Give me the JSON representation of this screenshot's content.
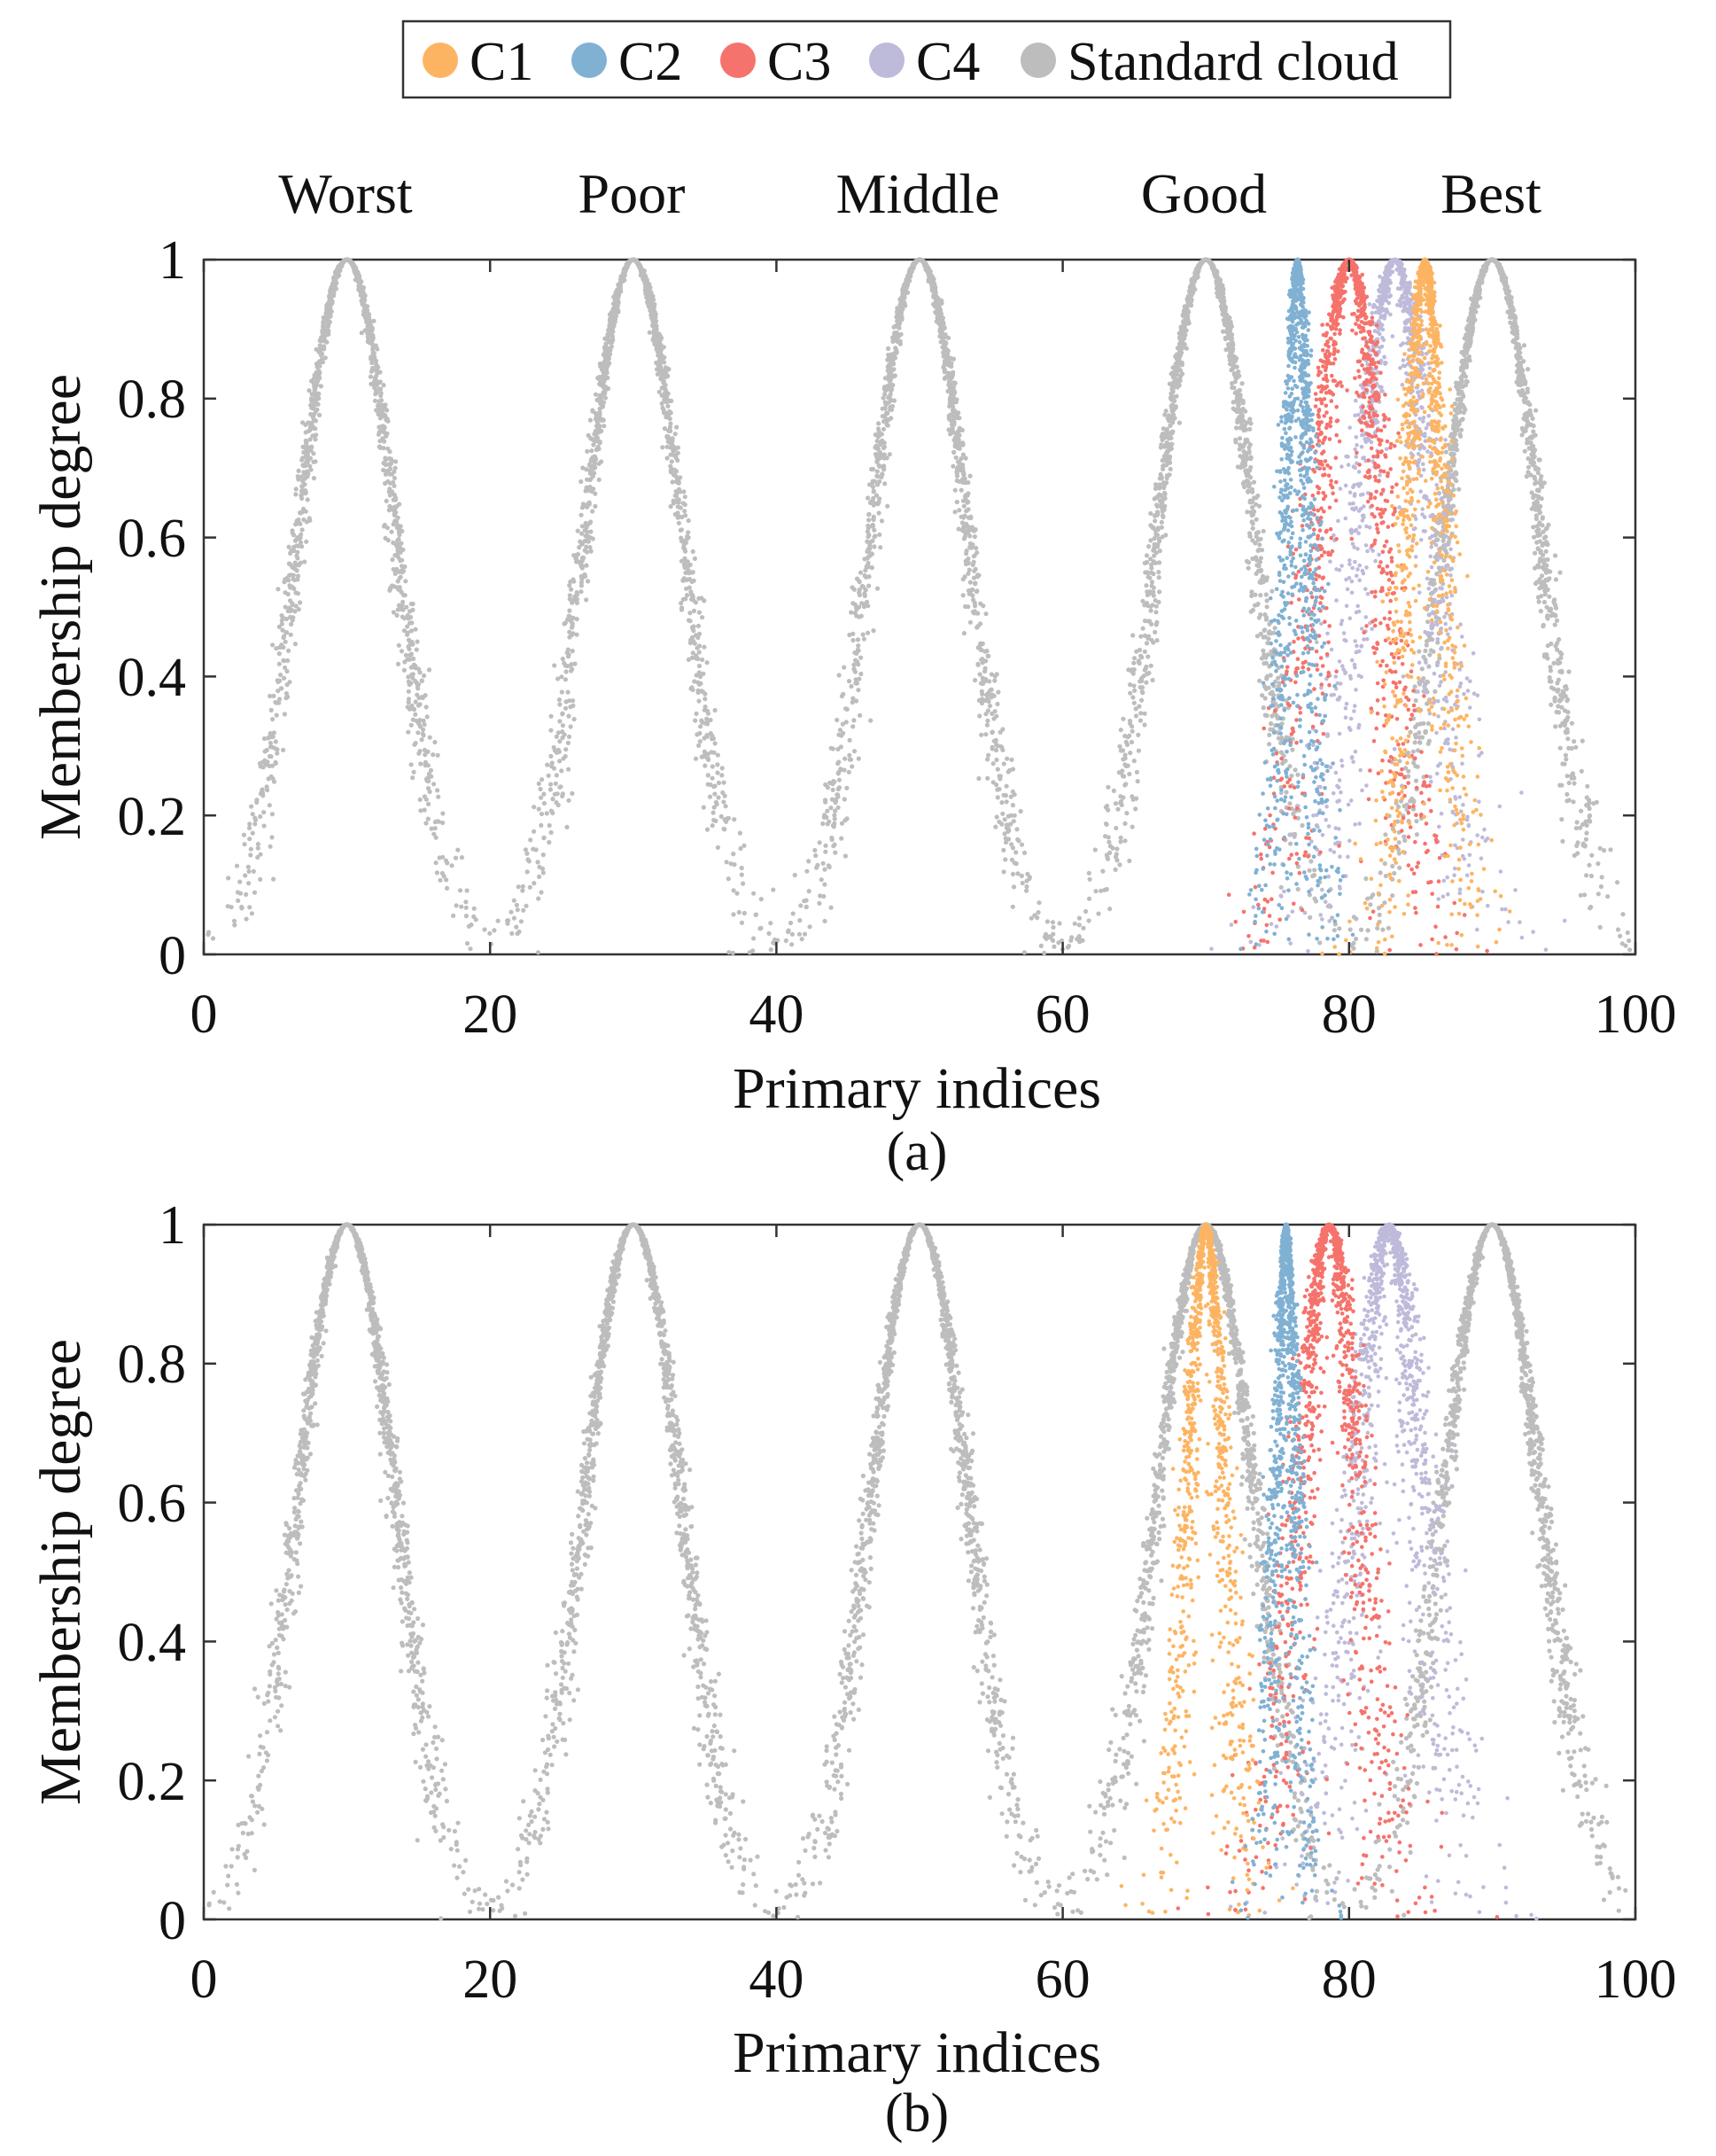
{
  "legend": {
    "entries": [
      {
        "label": "C1",
        "color": "#FDB462"
      },
      {
        "label": "C2",
        "color": "#80B1D3"
      },
      {
        "label": "C3",
        "color": "#F5736C"
      },
      {
        "label": "C4",
        "color": "#BEBADA"
      },
      {
        "label": "Standard cloud",
        "color": "#BDBDBD"
      }
    ]
  },
  "grade_labels": [
    "Worst",
    "Poor",
    "Middle",
    "Good",
    "Best"
  ],
  "chart_data": [
    {
      "type": "scatter",
      "panel_label": "(a)",
      "xlabel": "Primary indices",
      "ylabel": "Membership degree",
      "xlim": [
        0,
        100
      ],
      "ylim": [
        0,
        1
      ],
      "xticks": [
        "0",
        "20",
        "40",
        "60",
        "80",
        "100"
      ],
      "yticks": [
        "0",
        "0.2",
        "0.4",
        "0.6",
        "0.8",
        "1"
      ],
      "standard_clouds": [
        {
          "grade": "Worst",
          "Ex": 10,
          "En": 3.4,
          "He": 0.3
        },
        {
          "grade": "Poor",
          "Ex": 30,
          "En": 3.4,
          "He": 0.3
        },
        {
          "grade": "Middle",
          "Ex": 50,
          "En": 3.4,
          "He": 0.3
        },
        {
          "grade": "Good",
          "Ex": 70,
          "En": 3.4,
          "He": 0.3
        },
        {
          "grade": "Best",
          "Ex": 90,
          "En": 3.4,
          "He": 0.3
        }
      ],
      "series": [
        {
          "name": "C4",
          "Ex": 83.2,
          "En": 2.6,
          "He": 0.8
        },
        {
          "name": "C3",
          "Ex": 80.0,
          "En": 2.4,
          "He": 0.7
        },
        {
          "name": "C1",
          "Ex": 85.3,
          "En": 1.3,
          "He": 0.5
        },
        {
          "name": "C2",
          "Ex": 76.4,
          "En": 0.8,
          "He": 0.4
        }
      ]
    },
    {
      "type": "scatter",
      "panel_label": "(b)",
      "xlabel": "Primary indices",
      "ylabel": "Membership degree",
      "xlim": [
        0,
        100
      ],
      "ylim": [
        0,
        1
      ],
      "xticks": [
        "0",
        "20",
        "40",
        "60",
        "80",
        "100"
      ],
      "yticks": [
        "0",
        "0.2",
        "0.4",
        "0.6",
        "0.8",
        "1"
      ],
      "standard_clouds": [
        {
          "grade": "Worst",
          "Ex": 10,
          "En": 3.4,
          "He": 0.3
        },
        {
          "grade": "Poor",
          "Ex": 30,
          "En": 3.4,
          "He": 0.3
        },
        {
          "grade": "Middle",
          "Ex": 50,
          "En": 3.4,
          "He": 0.3
        },
        {
          "grade": "Good",
          "Ex": 70,
          "En": 3.4,
          "He": 0.3
        },
        {
          "grade": "Best",
          "Ex": 90,
          "En": 3.4,
          "He": 0.3
        }
      ],
      "series": [
        {
          "name": "C4",
          "Ex": 82.8,
          "En": 2.3,
          "He": 0.8
        },
        {
          "name": "C3",
          "Ex": 78.6,
          "En": 2.1,
          "He": 0.7
        },
        {
          "name": "C1",
          "Ex": 70.0,
          "En": 1.3,
          "He": 0.4
        },
        {
          "name": "C2",
          "Ex": 75.6,
          "En": 0.7,
          "He": 0.35
        }
      ]
    }
  ]
}
